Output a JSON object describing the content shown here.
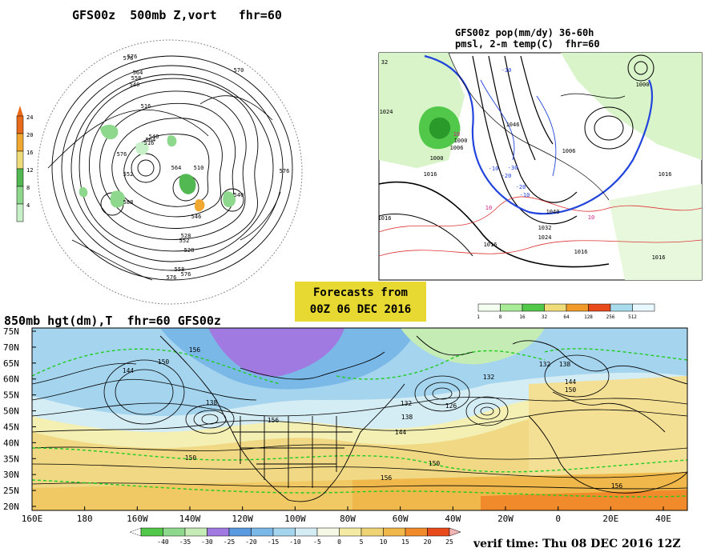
{
  "panels": {
    "hemi": {
      "title": "GFS00z  500mb Z,vort   fhr=60",
      "colorbar": {
        "labels": [
          "24",
          "20",
          "16",
          "12",
          "8",
          "4"
        ],
        "colors": [
          "#e86a1a",
          "#f0a830",
          "#eedc78",
          "#52b852",
          "#8ed88e",
          "#c8f0c8"
        ]
      },
      "contours": [
        "576",
        "564",
        "558",
        "540",
        "516",
        "528",
        "552",
        "576",
        "570",
        "576",
        "576",
        "552",
        "540",
        "564",
        "510",
        "540",
        "516",
        "528",
        "558",
        "564",
        "576",
        "588",
        "546",
        "576"
      ]
    },
    "precip": {
      "title_line1": "GFS00z pop(mm/dy) 36-60h",
      "title_line2": "pmsl, 2-m temp(C)  fhr=60",
      "colorbar": {
        "labels": [
          "1",
          "8",
          "16",
          "32",
          "64",
          "128",
          "256",
          "512"
        ],
        "colors": [
          "#f4fff0",
          "#a8ec98",
          "#52c84a",
          "#eedc78",
          "#f09a2a",
          "#e84a1a",
          "#a8dcec",
          "#e8f8ff"
        ]
      },
      "labels": [
        "1016",
        "1024",
        "1006",
        "1000",
        "1000",
        "1016",
        "1046",
        "1006",
        "1040",
        "1032",
        "1024",
        "1016",
        "1016",
        "1016",
        "1000",
        "1016",
        "-10",
        "-20",
        "-30",
        "-10",
        "-20",
        "-30",
        "10",
        "10",
        "10",
        "32"
      ]
    },
    "main": {
      "title": "850mb hgt(dm),T  fhr=60 GFS00z",
      "lat_labels": [
        "75N",
        "70N",
        "65N",
        "60N",
        "55N",
        "50N",
        "45N",
        "40N",
        "35N",
        "30N",
        "25N",
        "20N"
      ],
      "lon_labels": [
        "160E",
        "180",
        "160W",
        "140W",
        "120W",
        "100W",
        "80W",
        "60W",
        "40W",
        "20W",
        "0",
        "20E",
        "40E"
      ],
      "height_labels": [
        "156",
        "150",
        "144",
        "138",
        "156",
        "132",
        "132",
        "138",
        "144",
        "150",
        "150",
        "156",
        "126",
        "132",
        "138",
        "144",
        "150",
        "156"
      ],
      "colorbar": {
        "labels": [
          "-40",
          "-35",
          "-30",
          "-25",
          "-20",
          "-15",
          "-10",
          "-5",
          "0",
          "5",
          "10",
          "15",
          "20",
          "25"
        ],
        "colors": [
          "#52c84a",
          "#8ed88e",
          "#c4ecb4",
          "#a07ae0",
          "#5a9ae0",
          "#7ab8e8",
          "#a4d4ee",
          "#d4ecf4",
          "#f4f8e4",
          "#f4eaa4",
          "#eed274",
          "#f0b84a",
          "#f08a2a",
          "#e84a1a"
        ]
      }
    }
  },
  "banner": {
    "line1": "Forecasts from",
    "line2": "00Z 06 DEC 2016"
  },
  "verif_time": "verif time: Thu 08 DEC 2016 12Z",
  "colors": {
    "land_border": "#000000",
    "contour": "#000000",
    "temp_dash": "#22cc22",
    "precip_blue": "#2244dd",
    "temp_red": "#dd3333"
  }
}
